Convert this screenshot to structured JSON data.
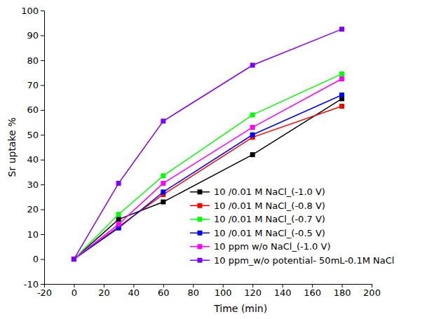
{
  "chart_data": {
    "type": "line",
    "x_label": "Time (min)",
    "y_label": "Sr uptake %",
    "x": [
      0,
      30,
      60,
      120,
      180
    ],
    "series": [
      {
        "name": "10 /0.01 M NaCl_(-1.0 V)",
        "color": "#000000",
        "values": [
          0,
          16,
          23,
          42,
          64.5
        ]
      },
      {
        "name": "10 /0.01 M NaCl_(-0.8 V)",
        "color": "#ff0000",
        "values": [
          0,
          13,
          26,
          49,
          61.5
        ]
      },
      {
        "name": "10 /0.01 M NaCl_(-0.7 V)",
        "color": "#00ff00",
        "values": [
          0,
          18,
          33.5,
          58,
          74.5
        ]
      },
      {
        "name": "10 /0.01 M NaCl_(-0.5 V)",
        "color": "#0000ff",
        "values": [
          0,
          12.5,
          27,
          50,
          66
        ]
      },
      {
        "name": "10 ppm w/o NaCl_(-1.0 V)",
        "color": "#ff00ff",
        "values": [
          0,
          14,
          30.5,
          53,
          72.5
        ]
      },
      {
        "name": "10 ppm_w/o potential- 50mL-0.1M NaCl",
        "color": "#8000ff",
        "values": [
          0,
          30.5,
          55.5,
          78,
          92.5
        ]
      }
    ],
    "xlim": [
      -20,
      200
    ],
    "xticks": [
      -20,
      0,
      20,
      40,
      60,
      80,
      100,
      120,
      140,
      160,
      180,
      200
    ],
    "ylim": [
      -10,
      100
    ],
    "yticks": [
      -10,
      0,
      10,
      20,
      30,
      40,
      50,
      60,
      70,
      80,
      90,
      100
    ],
    "grid": false,
    "legend": "lower right",
    "marker": "square",
    "line_style": "solid"
  }
}
